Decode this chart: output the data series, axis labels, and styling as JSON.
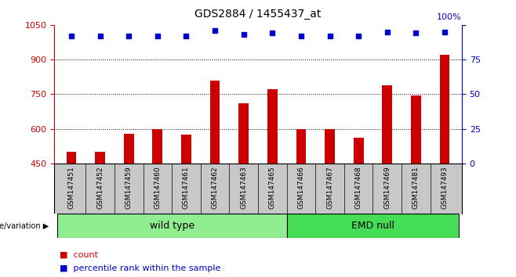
{
  "title": "GDS2884 / 1455437_at",
  "categories": [
    "GSM147451",
    "GSM147452",
    "GSM147459",
    "GSM147460",
    "GSM147461",
    "GSM147462",
    "GSM147463",
    "GSM147465",
    "GSM147466",
    "GSM147467",
    "GSM147468",
    "GSM147469",
    "GSM147481",
    "GSM147493"
  ],
  "bar_values": [
    500,
    502,
    580,
    600,
    575,
    810,
    710,
    770,
    600,
    600,
    560,
    790,
    745,
    920
  ],
  "percentile_values": [
    92,
    92,
    92,
    92,
    92,
    96,
    93,
    94,
    92,
    92,
    92,
    95,
    94,
    95
  ],
  "bar_color": "#cc0000",
  "dot_color": "#0000cc",
  "ylim_left": [
    450,
    1050
  ],
  "ylim_right": [
    0,
    100
  ],
  "yticks_left": [
    450,
    600,
    750,
    900,
    1050
  ],
  "yticks_right": [
    0,
    25,
    50,
    75,
    100
  ],
  "grid_values": [
    600,
    750,
    900
  ],
  "wild_type_count": 8,
  "emd_null_count": 6,
  "wild_type_label": "wild type",
  "emd_null_label": "EMD null",
  "genotype_label": "genotype/variation",
  "legend_bar_label": "count",
  "legend_dot_label": "percentile rank within the sample",
  "wt_color": "#90ee90",
  "emd_color": "#44dd55",
  "label_bg_color": "#c8c8c8"
}
